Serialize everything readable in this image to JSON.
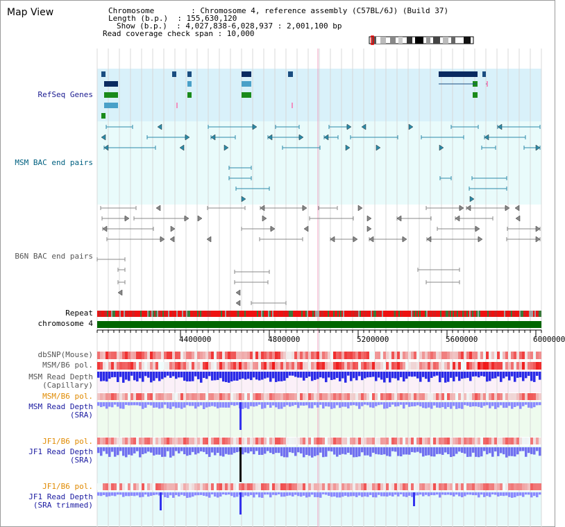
{
  "window": {
    "title": "Map View"
  },
  "header": {
    "lines": [
      "Chromosome        : Chromosome 4, reference assembly (C57BL/6J) (Build 37)",
      "Length (b.p.)  : 155,630,120",
      "Show (b.p.)  : 4,027,838-6,028,937 : 2,001,100 bp",
      "Read coverage check span : 10,000"
    ]
  },
  "tracks": {
    "refseq": "RefSeq Genes",
    "msm_bac": "MSM BAC end pairs",
    "b6n_bac": "B6N BAC end pairs",
    "repeat": "Repeat",
    "chromosome": "chromosome 4",
    "dbsnp": "dbSNP(Mouse)",
    "msm_b6_pol": "MSM/B6 pol.",
    "msm_depth_cap_1": "MSM Read Depth",
    "msm_depth_cap_2": "(Capillary)",
    "msm_b6_pol_2": "MSM/B6 pol.",
    "msm_depth_sra_1": "MSM Read Depth",
    "msm_depth_sra_2": "(SRA)",
    "jf1_b6_pol": "JF1/B6 pol.",
    "jf1_depth_sra_1": "JF1 Read Depth",
    "jf1_depth_sra_2": "(SRA)",
    "jf1_b6_pol_2": "JF1/B6 pol.",
    "jf1_depth_trim_1": "JF1 Read Depth",
    "jf1_depth_trim_2": "(SRA trimmed)"
  },
  "axis": {
    "ticks": [
      "4400000",
      "4800000",
      "5200000",
      "5600000",
      "6000000"
    ]
  },
  "colors": {
    "refseq_bg": "#d9f1fa",
    "light_bg": "#e9fbfb",
    "msm_label": "#006080",
    "refseq_label": "#1a1a90",
    "b6n_label": "#555555",
    "orange_label": "#e08a00",
    "blue_label": "#1a1aa0",
    "chromosome_bar": "#006600",
    "depth_blue": "#3333ee",
    "depth_light": "#8080ff"
  }
}
